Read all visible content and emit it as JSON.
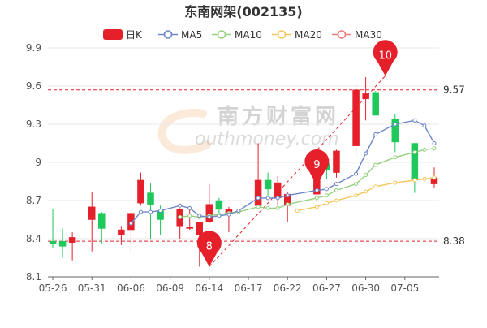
{
  "chart_data": {
    "type": "candlestick",
    "title": "东南网架(002135)",
    "legend": [
      {
        "label": "日K",
        "kind": "kline",
        "color": "#e5202b"
      },
      {
        "label": "MA5",
        "kind": "ma",
        "color": "#6d86c7"
      },
      {
        "label": "MA10",
        "kind": "ma",
        "color": "#95d17e"
      },
      {
        "label": "MA20",
        "kind": "ma",
        "color": "#f5c75a"
      },
      {
        "label": "MA30",
        "kind": "ma",
        "color": "#f07a7a"
      }
    ],
    "y_ticks": [
      "8.1",
      "8.4",
      "8.7",
      "9",
      "9.3",
      "9.6",
      "9.9"
    ],
    "ylim": [
      8.1,
      9.9
    ],
    "x_ticks": [
      "05-26",
      "05-31",
      "06-06",
      "06-09",
      "06-14",
      "06-17",
      "06-22",
      "06-27",
      "06-30",
      "07-05"
    ],
    "x_tick_index": [
      0,
      4,
      8,
      12,
      16,
      20,
      24,
      28,
      32,
      36
    ],
    "candles": [
      {
        "o": 8.38,
        "c": 8.36,
        "h": 8.63,
        "l": 8.33
      },
      {
        "o": 8.38,
        "c": 8.34,
        "h": 8.48,
        "l": 8.25
      },
      {
        "o": 8.37,
        "c": 8.41,
        "h": 8.45,
        "l": 8.23
      },
      {
        "o": 8.55,
        "c": 8.65,
        "h": 8.77,
        "l": 8.3
      },
      {
        "o": 8.6,
        "c": 8.48,
        "h": 8.61,
        "l": 8.36
      },
      {
        "o": 8.43,
        "c": 8.47,
        "h": 8.5,
        "l": 8.35
      },
      {
        "o": 8.47,
        "c": 8.6,
        "h": 8.61,
        "l": 8.28
      },
      {
        "o": 8.68,
        "c": 8.86,
        "h": 8.92,
        "l": 8.66
      },
      {
        "o": 8.76,
        "c": 8.67,
        "h": 8.84,
        "l": 8.4
      },
      {
        "o": 8.62,
        "c": 8.55,
        "h": 8.66,
        "l": 8.43
      },
      {
        "o": 8.5,
        "c": 8.63,
        "h": 8.64,
        "l": 8.4
      },
      {
        "o": 8.48,
        "c": 8.49,
        "h": 8.64,
        "l": 8.47
      },
      {
        "o": 8.43,
        "c": 8.53,
        "h": 8.53,
        "l": 8.18
      },
      {
        "o": 8.53,
        "c": 8.67,
        "h": 8.83,
        "l": 8.52
      },
      {
        "o": 8.7,
        "c": 8.63,
        "h": 8.72,
        "l": 8.58
      },
      {
        "o": 8.6,
        "c": 8.63,
        "h": 8.65,
        "l": 8.45
      },
      {
        "o": 8.66,
        "c": 8.86,
        "h": 9.15,
        "l": 8.66
      },
      {
        "o": 8.86,
        "c": 8.79,
        "h": 8.92,
        "l": 8.72
      },
      {
        "o": 8.72,
        "c": 8.84,
        "h": 8.89,
        "l": 8.66
      },
      {
        "o": 8.66,
        "c": 8.75,
        "h": 8.77,
        "l": 8.53
      },
      {
        "o": 8.75,
        "c": 8.99,
        "h": 9.07,
        "l": 8.7
      },
      {
        "o": 8.99,
        "c": 8.94,
        "h": 9.0,
        "l": 8.87
      },
      {
        "o": 8.92,
        "c": 9.09,
        "h": 9.1,
        "l": 8.88
      },
      {
        "o": 9.13,
        "c": 9.57,
        "h": 9.62,
        "l": 9.05
      },
      {
        "o": 9.5,
        "c": 9.54,
        "h": 9.67,
        "l": 9.33
      },
      {
        "o": 9.55,
        "c": 9.37,
        "h": 9.56,
        "l": 9.37
      },
      {
        "o": 9.34,
        "c": 9.16,
        "h": 9.38,
        "l": 9.08
      },
      {
        "o": 9.15,
        "c": 8.86,
        "h": 9.15,
        "l": 8.76
      },
      {
        "o": 8.83,
        "c": 8.88,
        "h": 8.96,
        "l": 8.8
      }
    ],
    "candle_index": [
      0,
      1,
      2,
      4,
      5,
      7,
      8,
      9,
      10,
      11,
      13,
      14,
      15,
      16,
      17,
      18,
      21,
      22,
      23,
      24,
      27,
      28,
      29,
      31,
      32,
      33,
      35,
      37,
      39
    ],
    "ma5": [
      [
        8,
        8.52
      ],
      [
        9,
        8.61
      ],
      [
        10,
        8.61
      ],
      [
        11,
        8.62
      ],
      [
        13,
        8.66
      ],
      [
        14,
        8.64
      ],
      [
        15,
        8.58
      ],
      [
        16,
        8.57
      ],
      [
        17,
        8.58
      ],
      [
        18,
        8.59
      ],
      [
        19,
        8.62
      ],
      [
        21,
        8.72
      ],
      [
        22,
        8.72
      ],
      [
        23,
        8.72
      ],
      [
        24,
        8.74
      ],
      [
        27,
        8.78
      ],
      [
        28,
        8.79
      ],
      [
        29,
        8.83
      ],
      [
        31,
        8.91
      ],
      [
        32,
        9.07
      ],
      [
        33,
        9.22
      ],
      [
        35,
        9.3
      ],
      [
        37,
        9.33
      ],
      [
        38,
        9.29
      ],
      [
        39,
        9.15
      ]
    ],
    "ma10": [
      [
        13,
        8.57
      ],
      [
        14,
        8.58
      ],
      [
        15,
        8.57
      ],
      [
        16,
        8.58
      ],
      [
        17,
        8.59
      ],
      [
        18,
        8.6
      ],
      [
        19,
        8.61
      ],
      [
        21,
        8.65
      ],
      [
        22,
        8.64
      ],
      [
        23,
        8.64
      ],
      [
        24,
        8.67
      ],
      [
        27,
        8.72
      ],
      [
        28,
        8.74
      ],
      [
        29,
        8.78
      ],
      [
        31,
        8.83
      ],
      [
        32,
        8.9
      ],
      [
        33,
        8.98
      ],
      [
        35,
        9.04
      ],
      [
        37,
        9.08
      ],
      [
        38,
        9.1
      ],
      [
        39,
        9.11
      ]
    ],
    "ma20": [
      [
        25,
        8.62
      ],
      [
        27,
        8.65
      ],
      [
        28,
        8.68
      ],
      [
        29,
        8.7
      ],
      [
        31,
        8.74
      ],
      [
        32,
        8.77
      ],
      [
        33,
        8.81
      ],
      [
        35,
        8.84
      ],
      [
        37,
        8.86
      ],
      [
        38,
        8.87
      ],
      [
        39,
        8.88
      ]
    ],
    "ma30": [],
    "ref_lines": [
      {
        "value": 9.57,
        "label": "9.57"
      },
      {
        "value": 8.38,
        "label": "8.38"
      }
    ],
    "markers": [
      {
        "label": "8",
        "index": 16,
        "value": 8.18
      },
      {
        "label": "9",
        "index": 27,
        "value": 8.82
      },
      {
        "label": "10",
        "index": 34,
        "value": 9.68
      }
    ],
    "watermark": {
      "text_cn": "南方财富网",
      "text_en": "outhmoney.com"
    }
  }
}
